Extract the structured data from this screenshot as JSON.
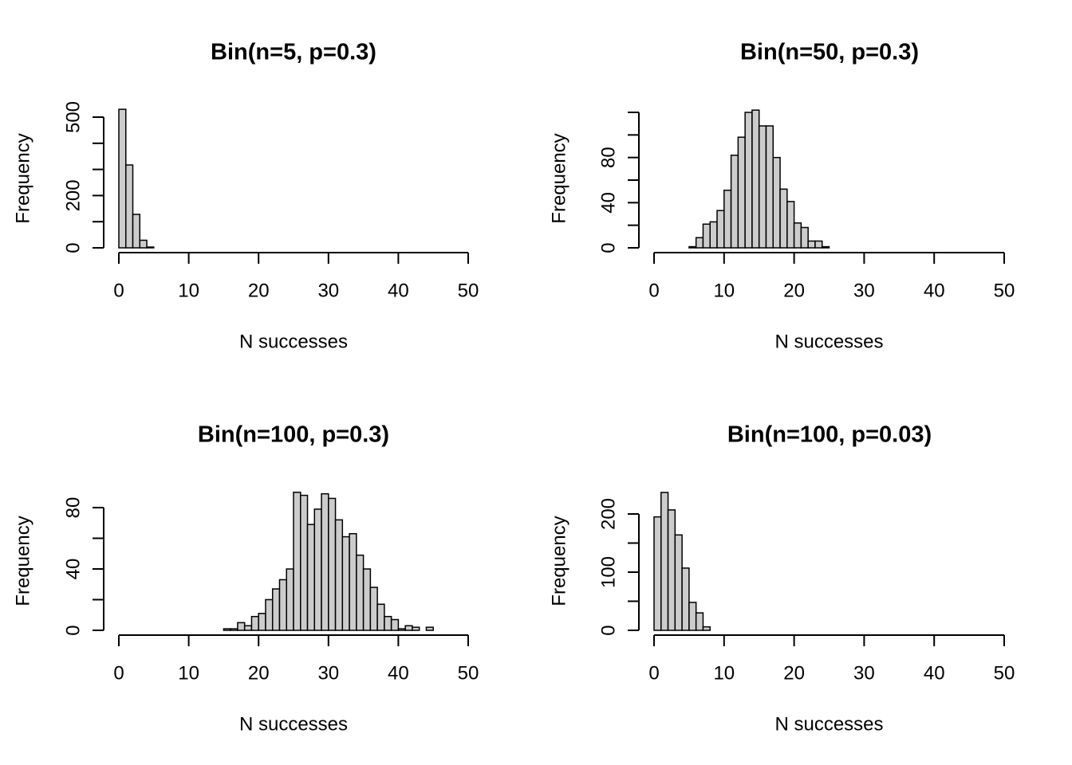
{
  "chart_data": [
    {
      "type": "bar",
      "title": "Bin(n=5, p=0.3)",
      "xlabel": "N successes",
      "ylabel": "Frequency",
      "xlim": [
        0,
        50
      ],
      "ylim": [
        0,
        500
      ],
      "xticks": [
        0,
        10,
        20,
        30,
        40,
        50
      ],
      "yticks": [
        0,
        100,
        200,
        300,
        400,
        500
      ],
      "ytick_labels": [
        "0",
        "",
        "200",
        "",
        "",
        "500"
      ],
      "bin_width": 1,
      "bin_start": 0,
      "values": [
        530,
        317,
        128,
        29,
        3,
        0,
        0,
        0,
        0,
        0,
        0,
        0,
        0,
        0,
        0,
        0,
        0,
        0,
        0,
        0,
        0,
        0,
        0,
        0,
        0,
        0,
        0,
        0,
        0,
        0,
        0,
        0,
        0,
        0,
        0,
        0,
        0,
        0,
        0,
        0,
        0,
        0,
        0,
        0,
        0,
        0,
        0,
        0,
        0,
        0
      ]
    },
    {
      "type": "bar",
      "title": "Bin(n=50, p=0.3)",
      "xlabel": "N successes",
      "ylabel": "Frequency",
      "xlim": [
        0,
        50
      ],
      "ylim": [
        0,
        120
      ],
      "xticks": [
        0,
        10,
        20,
        30,
        40,
        50
      ],
      "yticks": [
        0,
        20,
        40,
        60,
        80,
        100,
        120
      ],
      "ytick_labels": [
        "0",
        "",
        "40",
        "",
        "80",
        "",
        ""
      ],
      "bin_width": 1,
      "bin_start": 0,
      "values": [
        0,
        0,
        0,
        0,
        0,
        1,
        9,
        21,
        23,
        33,
        51,
        82,
        98,
        120,
        122,
        108,
        108,
        80,
        52,
        41,
        22,
        18,
        6,
        6,
        1,
        0,
        0,
        0,
        0,
        0,
        0,
        0,
        0,
        0,
        0,
        0,
        0,
        0,
        0,
        0,
        0,
        0,
        0,
        0,
        0,
        0,
        0,
        0,
        0,
        0
      ]
    },
    {
      "type": "bar",
      "title": "Bin(n=100, p=0.3)",
      "xlabel": "N successes",
      "ylabel": "Frequency",
      "xlim": [
        0,
        50
      ],
      "ylim": [
        0,
        80
      ],
      "xticks": [
        0,
        10,
        20,
        30,
        40,
        50
      ],
      "yticks": [
        0,
        20,
        40,
        60,
        80
      ],
      "ytick_labels": [
        "0",
        "",
        "40",
        "",
        "80"
      ],
      "bin_width": 1,
      "bin_start": 0,
      "values": [
        0,
        0,
        0,
        0,
        0,
        0,
        0,
        0,
        0,
        0,
        0,
        0,
        0,
        0,
        0,
        1,
        1,
        5,
        3,
        9,
        11,
        20,
        27,
        33,
        40,
        90,
        88,
        69,
        79,
        89,
        86,
        72,
        61,
        63,
        49,
        40,
        28,
        17,
        9,
        7,
        1,
        3,
        2,
        0,
        2,
        0,
        0,
        0,
        0,
        0
      ]
    },
    {
      "type": "bar",
      "title": "Bin(n=100, p=0.03)",
      "xlabel": "N successes",
      "ylabel": "Frequency",
      "xlim": [
        0,
        50
      ],
      "ylim": [
        0,
        200
      ],
      "xticks": [
        0,
        10,
        20,
        30,
        40,
        50
      ],
      "yticks": [
        0,
        50,
        100,
        150,
        200
      ],
      "ytick_labels": [
        "0",
        "",
        "100",
        "",
        "200"
      ],
      "bin_width": 1,
      "bin_start": 0,
      "values": [
        195,
        237,
        207,
        164,
        107,
        48,
        30,
        6,
        0,
        0,
        0,
        0,
        0,
        0,
        0,
        0,
        0,
        0,
        0,
        0,
        0,
        0,
        0,
        0,
        0,
        0,
        0,
        0,
        0,
        0,
        0,
        0,
        0,
        0,
        0,
        0,
        0,
        0,
        0,
        0,
        0,
        0,
        0,
        0,
        0,
        0,
        0,
        0,
        0,
        0
      ]
    }
  ],
  "colors": {
    "bar_fill": "#cccccc",
    "bar_stroke": "#000000",
    "axis": "#000000",
    "background": "#ffffff"
  }
}
